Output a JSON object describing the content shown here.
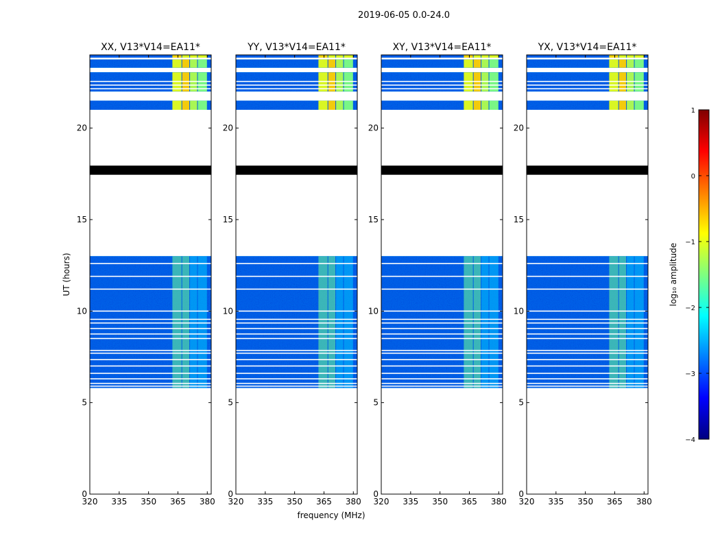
{
  "figure": {
    "suptitle": "2019-06-05 0.0-24.0",
    "xlabel": "frequency (MHz)",
    "ylabel": "UT (hours)"
  },
  "chart_data": {
    "type": "heatmap",
    "x_range_mhz": [
      320,
      382
    ],
    "y_range_hours": [
      0,
      24
    ],
    "x_ticks": [
      320,
      335,
      350,
      365,
      380
    ],
    "y_ticks": [
      0,
      5,
      10,
      15,
      20
    ],
    "panels": [
      {
        "title": "XX, V13*V14=EA11*",
        "polarization": "XX"
      },
      {
        "title": "YY, V13*V14=EA11*",
        "polarization": "YY"
      },
      {
        "title": "XY, V13*V14=EA11*",
        "polarization": "XY"
      },
      {
        "title": "YX, V13*V14=EA11*",
        "polarization": "YX"
      }
    ],
    "data_blocks_hours": [
      [
        5.8,
        13.0
      ],
      [
        21.0,
        21.5
      ],
      [
        22.0,
        23.05
      ],
      [
        23.3,
        23.75
      ],
      [
        23.85,
        24.0
      ]
    ],
    "flagged_rows_hours": [
      [
        17.45,
        17.95
      ]
    ],
    "thin_gaps_hours": [
      5.9,
      6.05,
      6.3,
      6.6,
      7.0,
      7.35,
      7.7,
      7.85,
      8.5,
      8.75,
      9.05,
      9.35,
      9.55,
      10.0,
      11.2,
      11.9,
      12.6,
      22.15,
      22.35,
      22.55
    ],
    "rfi_bands_mhz": [
      [
        362,
        367
      ],
      [
        367,
        371
      ],
      [
        371,
        375
      ],
      [
        375,
        380
      ]
    ],
    "colorbar": {
      "label": "log₁₀ amplitude",
      "range": [
        -4,
        1
      ],
      "ticks": [
        1,
        0,
        -1,
        -2,
        -3,
        -4
      ],
      "colormap": [
        "#00007f",
        "#0000ff",
        "#007fff",
        "#00ffff",
        "#7fff7f",
        "#ffff00",
        "#ff7f00",
        "#ff0000",
        "#7f0000"
      ]
    }
  }
}
